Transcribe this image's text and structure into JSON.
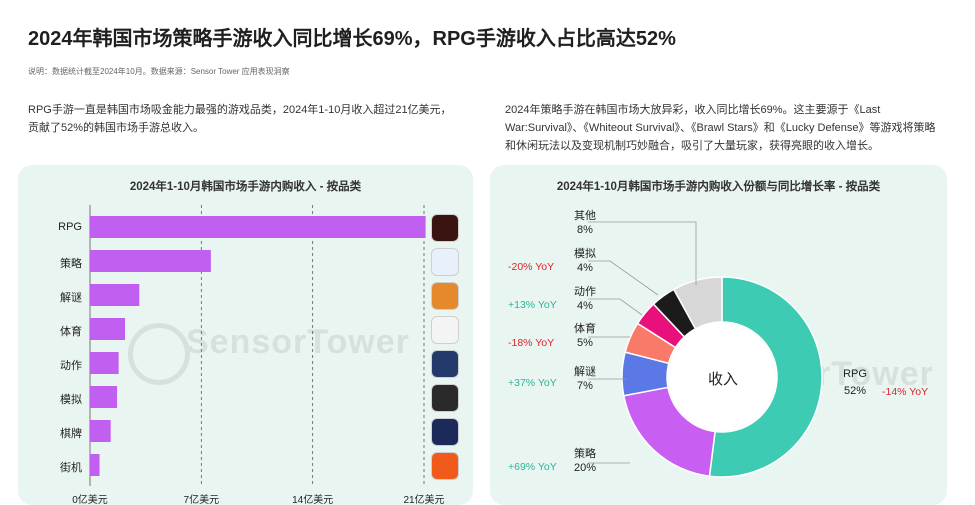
{
  "header": {
    "title": "2024年韩国市场策略手游收入同比增长69%，RPG手游收入占比高达52%",
    "note": "说明：数据统计截至2024年10月。数据来源：Sensor Tower 应用表现洞察"
  },
  "desc": {
    "left": "RPG手游一直是韩国市场吸金能力最强的游戏品类，2024年1-10月收入超过21亿美元，贡献了52%的韩国市场手游总收入。",
    "right": "2024年策略手游在韩国市场大放异彩，收入同比增长69%。这主要源于《Last War:Survival》、《Whiteout Survival》、《Brawl Stars》和《Lucky Defense》等游戏将策略和休闲玩法以及变现机制巧妙融合，吸引了大量玩家，获得亮眼的收入增长。"
  },
  "watermark": "SensorTower",
  "chart_data": [
    {
      "type": "bar",
      "orientation": "horizontal",
      "title": "2024年1-10月韩国市场手游内购收入 - 按品类",
      "categories": [
        "RPG",
        "策略",
        "解谜",
        "体育",
        "动作",
        "模拟",
        "棋牌",
        "街机"
      ],
      "values": [
        21.1,
        7.6,
        3.1,
        2.2,
        1.8,
        1.7,
        1.3,
        0.6
      ],
      "xlim": [
        0,
        21
      ],
      "xticks": [
        "0亿美元",
        "7亿美元",
        "14亿美元",
        "21亿美元"
      ],
      "xtick_values": [
        0,
        7,
        14,
        21
      ],
      "bar_color": "#c05ff0",
      "grid": "vertical dashed"
    },
    {
      "type": "pie",
      "title": "2024年1-10月韩国市场手游内购收入份额与同比增长率 - 按品类",
      "center_label": "收入",
      "slices": [
        {
          "name": "RPG",
          "value": 52,
          "label": "52%",
          "yoy": "-14% YoY",
          "color": "#3ecbb3"
        },
        {
          "name": "策略",
          "value": 20,
          "label": "20%",
          "yoy": "+69% YoY",
          "color": "#c95ff2"
        },
        {
          "name": "解谜",
          "value": 7,
          "label": "7%",
          "yoy": "+37% YoY",
          "color": "#5a78e6"
        },
        {
          "name": "体育",
          "value": 5,
          "label": "5%",
          "yoy": "-18% YoY",
          "color": "#fa7a6a"
        },
        {
          "name": "动作",
          "value": 4,
          "label": "4%",
          "yoy": "+13% YoY",
          "color": "#e8117b"
        },
        {
          "name": "模拟",
          "value": 4,
          "label": "4%",
          "yoy": "-20% YoY",
          "color": "#1b1b1b"
        },
        {
          "name": "其他",
          "value": 8,
          "label": "8%",
          "yoy": "",
          "color": "#d7d7d7"
        }
      ]
    }
  ],
  "colors": {
    "negative": "#d9262e",
    "positive": "#2bb59a",
    "panel_bg": "#e9f5f0"
  },
  "app_icons": [
    "rpg-game-icon",
    "strategy-game-icon",
    "puzzle-game-icon",
    "sports-game-icon",
    "action-game-icon",
    "simulation-game-icon",
    "card-game-icon",
    "arcade-game-icon"
  ]
}
